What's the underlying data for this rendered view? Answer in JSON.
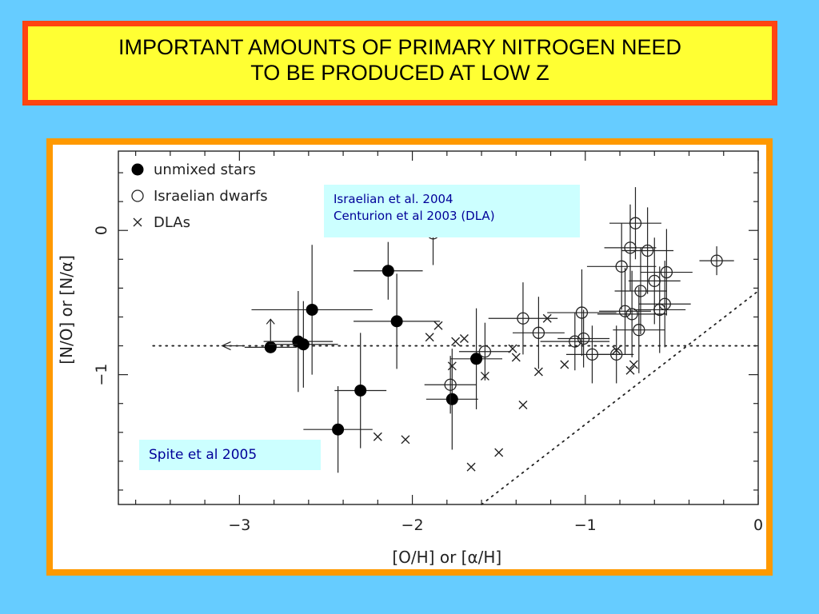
{
  "title": {
    "line1": "IMPORTANT AMOUNTS OF PRIMARY NITROGEN NEED",
    "line2": "TO BE PRODUCED AT LOW  Z"
  },
  "notes": {
    "israelian_line1": "Israelian et al. 2004",
    "israelian_line2": "Centurion et al 2003 (DLA)",
    "spite": "Spite et al 2005"
  },
  "colors": {
    "background": "#66ccff",
    "title_fill": "#ffff33",
    "title_border": "#ff4411",
    "frame": "#ff9900",
    "note_fill": "#ccffff",
    "note_text": "#000099"
  },
  "chart_data": {
    "type": "scatter",
    "xlabel": "[O/H]  or  [α/H]",
    "ylabel": "[N/O]  or  [N/α]",
    "xlim": [
      -3.7,
      0
    ],
    "ylim": [
      -1.9,
      0.55
    ],
    "x_ticks": [
      -3,
      -2,
      -1,
      0
    ],
    "x_tick_labels": [
      "−3",
      "−2",
      "−1",
      "0"
    ],
    "y_ticks": [
      0,
      -1
    ],
    "y_tick_labels": [
      "0",
      "−1"
    ],
    "legend_position": "top-left",
    "legend": [
      {
        "label": "unmixed  stars",
        "marker": "filled-circle"
      },
      {
        "label": "Israelian  dwarfs",
        "marker": "open-circle"
      },
      {
        "label": "DLAs",
        "marker": "cross"
      }
    ],
    "reference_lines": [
      {
        "style": "dotted",
        "from": [
          -3.5,
          -0.8
        ],
        "to": [
          0,
          -0.8
        ]
      },
      {
        "style": "dotted",
        "from": [
          -1.6,
          -1.9
        ],
        "to": [
          0,
          -0.42
        ]
      }
    ],
    "series": [
      {
        "name": "unmixed  stars",
        "marker": "filled-circle",
        "points": [
          {
            "x": -2.82,
            "y": -0.81,
            "xerr": 0.15,
            "yerr": 0.0,
            "lower_limit": true
          },
          {
            "x": -2.66,
            "y": -0.77,
            "xerr": 0.2,
            "yerr": 0.35
          },
          {
            "x": -2.63,
            "y": -0.79,
            "xerr": 0.2,
            "yerr": 0.3
          },
          {
            "x": -2.58,
            "y": -0.55,
            "xerr": 0.35,
            "yerr": 0.45
          },
          {
            "x": -2.43,
            "y": -1.38,
            "xerr": 0.2,
            "yerr": 0.3
          },
          {
            "x": -2.3,
            "y": -1.11,
            "xerr": 0.15,
            "yerr": 0.4
          },
          {
            "x": -2.14,
            "y": -0.28,
            "xerr": 0.2,
            "yerr": 0.2
          },
          {
            "x": -2.09,
            "y": -0.63,
            "xerr": 0.25,
            "yerr": 0.33
          },
          {
            "x": -1.77,
            "y": -1.17,
            "xerr": 0.15,
            "yerr": 0.35
          },
          {
            "x": -1.63,
            "y": -0.89,
            "xerr": 0.15,
            "yerr": 0.35
          }
        ]
      },
      {
        "name": "Israelian  dwarfs",
        "marker": "open-circle",
        "points": [
          {
            "x": -1.88,
            "y": -0.02,
            "xerr": 0.3,
            "yerr": 0.22
          },
          {
            "x": -1.78,
            "y": -1.07,
            "xerr": 0.15,
            "yerr": 0.2
          },
          {
            "x": -1.58,
            "y": -0.84,
            "xerr": 0.15,
            "yerr": 0.2
          },
          {
            "x": -1.36,
            "y": -0.61,
            "xerr": 0.2,
            "yerr": 0.25
          },
          {
            "x": -1.27,
            "y": -0.71,
            "xerr": 0.15,
            "yerr": 0.25
          },
          {
            "x": -1.06,
            "y": -0.77,
            "xerr": 0.2,
            "yerr": 0.2
          },
          {
            "x": -1.02,
            "y": -0.57,
            "xerr": 0.2,
            "yerr": 0.3
          },
          {
            "x": -1.01,
            "y": -0.75,
            "xerr": 0.15,
            "yerr": 0.2
          },
          {
            "x": -0.96,
            "y": -0.86,
            "xerr": 0.15,
            "yerr": 0.2
          },
          {
            "x": -0.82,
            "y": -0.86,
            "xerr": 0.1,
            "yerr": 0.2
          },
          {
            "x": -0.79,
            "y": -0.25,
            "xerr": 0.2,
            "yerr": 0.3
          },
          {
            "x": -0.77,
            "y": -0.56,
            "xerr": 0.15,
            "yerr": 0.3
          },
          {
            "x": -0.74,
            "y": -0.12,
            "xerr": 0.15,
            "yerr": 0.3
          },
          {
            "x": -0.73,
            "y": -0.58,
            "xerr": 0.2,
            "yerr": 0.3
          },
          {
            "x": -0.71,
            "y": 0.05,
            "xerr": 0.15,
            "yerr": 0.25
          },
          {
            "x": -0.69,
            "y": -0.69,
            "xerr": 0.15,
            "yerr": 0.3
          },
          {
            "x": -0.68,
            "y": -0.42,
            "xerr": 0.15,
            "yerr": 0.3
          },
          {
            "x": -0.64,
            "y": -0.14,
            "xerr": 0.15,
            "yerr": 0.3
          },
          {
            "x": -0.6,
            "y": -0.35,
            "xerr": 0.15,
            "yerr": 0.3
          },
          {
            "x": -0.57,
            "y": -0.55,
            "xerr": 0.15,
            "yerr": 0.3
          },
          {
            "x": -0.54,
            "y": -0.51,
            "xerr": 0.15,
            "yerr": 0.3
          },
          {
            "x": -0.53,
            "y": -0.29,
            "xerr": 0.15,
            "yerr": 0.3
          },
          {
            "x": -0.24,
            "y": -0.21,
            "xerr": 0.1,
            "yerr": 0.1
          }
        ]
      },
      {
        "name": "DLAs",
        "marker": "cross",
        "points": [
          {
            "x": -2.2,
            "y": -1.43
          },
          {
            "x": -2.04,
            "y": -1.45
          },
          {
            "x": -1.9,
            "y": -0.74
          },
          {
            "x": -1.85,
            "y": -0.66
          },
          {
            "x": -1.77,
            "y": -0.94
          },
          {
            "x": -1.75,
            "y": -0.77
          },
          {
            "x": -1.7,
            "y": -0.75
          },
          {
            "x": -1.66,
            "y": -1.64
          },
          {
            "x": -1.58,
            "y": -1.01
          },
          {
            "x": -1.5,
            "y": -1.54
          },
          {
            "x": -1.42,
            "y": -0.82
          },
          {
            "x": -1.4,
            "y": -0.88
          },
          {
            "x": -1.36,
            "y": -1.21
          },
          {
            "x": -1.27,
            "y": -0.98
          },
          {
            "x": -1.22,
            "y": -0.61
          },
          {
            "x": -1.12,
            "y": -0.93
          },
          {
            "x": -0.82,
            "y": -0.83
          },
          {
            "x": -0.74,
            "y": -0.97
          },
          {
            "x": -0.72,
            "y": -0.93
          }
        ]
      }
    ]
  }
}
